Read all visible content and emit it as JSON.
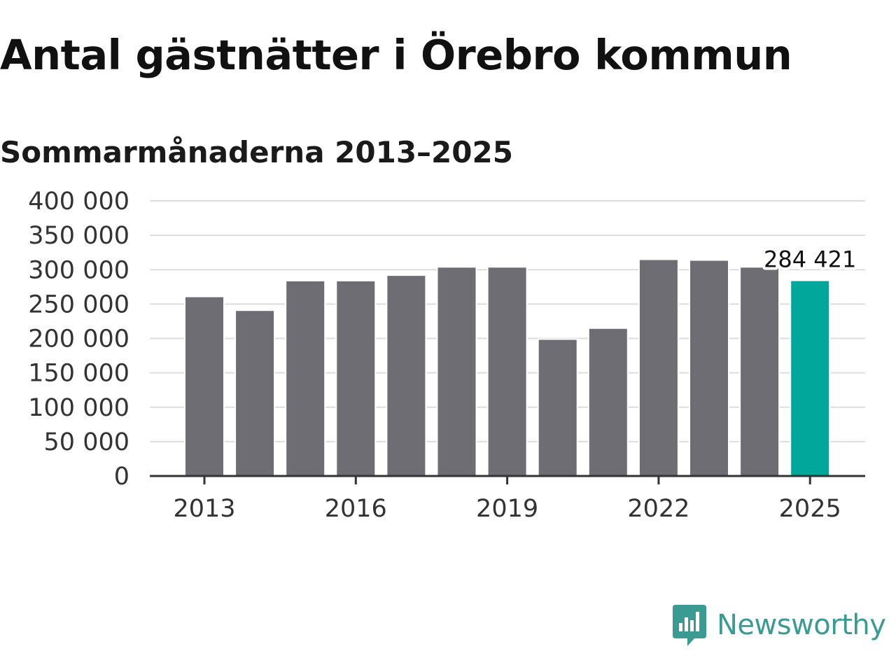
{
  "title": "Antal gästnätter i Örebro kommun",
  "subtitle": "Sommarmånaderna 2013–2025",
  "brand": {
    "name": "Newsworthy",
    "color": "#3a9b92",
    "icon": "newsworthy-logo-icon"
  },
  "colors": {
    "bar": "#6e6d74",
    "highlight": "#00a79a",
    "grid": "#dddddd",
    "axis": "#333333"
  },
  "chart_data": {
    "type": "bar",
    "categories": [
      "2013",
      "2014",
      "2015",
      "2016",
      "2017",
      "2018",
      "2019",
      "2020",
      "2021",
      "2022",
      "2023",
      "2024",
      "2025"
    ],
    "values": [
      261000,
      241000,
      284000,
      284000,
      292000,
      304000,
      304000,
      199000,
      215000,
      315000,
      314000,
      304000,
      284421
    ],
    "x_tick_labels": [
      "2013",
      "2016",
      "2019",
      "2022",
      "2025"
    ],
    "y_ticks": [
      0,
      50000,
      100000,
      150000,
      200000,
      250000,
      300000,
      350000,
      400000
    ],
    "y_tick_labels": [
      "0",
      "50 000",
      "100 000",
      "150 000",
      "200 000",
      "250 000",
      "300 000",
      "350 000",
      "400 000"
    ],
    "ylim": [
      0,
      400000
    ],
    "grid": true,
    "highlight_index": 12,
    "annotation": "284 421",
    "xlabel": "",
    "ylabel": ""
  }
}
